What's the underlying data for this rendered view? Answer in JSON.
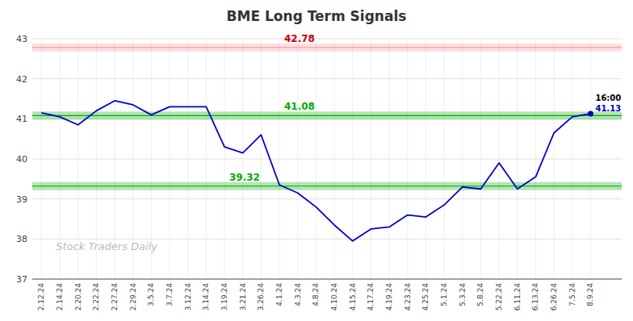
{
  "chart_data": {
    "type": "line",
    "title": "BME Long Term Signals",
    "categories": [
      "2.12.24",
      "2.14.24",
      "2.20.24",
      "2.22.24",
      "2.27.24",
      "2.29.24",
      "3.5.24",
      "3.7.24",
      "3.12.24",
      "3.14.24",
      "3.19.24",
      "3.21.24",
      "3.26.24",
      "4.1.24",
      "4.3.24",
      "4.8.24",
      "4.10.24",
      "4.15.24",
      "4.17.24",
      "4.19.24",
      "4.23.24",
      "4.25.24",
      "5.1.24",
      "5.3.24",
      "5.8.24",
      "5.22.24",
      "6.11.24",
      "6.13.24",
      "6.26.24",
      "7.5.24",
      "8.9.24"
    ],
    "values": [
      41.15,
      41.05,
      40.85,
      41.2,
      41.45,
      41.35,
      41.1,
      41.3,
      41.3,
      41.3,
      40.3,
      40.15,
      40.6,
      39.35,
      39.15,
      38.8,
      38.35,
      37.95,
      38.25,
      38.3,
      38.6,
      38.55,
      38.85,
      39.3,
      39.25,
      39.9,
      39.25,
      39.55,
      40.65,
      41.05,
      41.13
    ],
    "color": "#0000cc",
    "ylim": [
      37,
      43
    ],
    "yticks": [
      37,
      38,
      39,
      40,
      41,
      42,
      43
    ],
    "grid": true,
    "reference_lines": [
      {
        "value": 42.78,
        "color": "#ff9999",
        "label_color": "#cc0000"
      },
      {
        "value": 41.08,
        "color": "#00aa00",
        "label_color": "#00aa00"
      },
      {
        "value": 39.32,
        "color": "#00aa00",
        "label_color": "#00aa00"
      }
    ],
    "annotations": [
      {
        "text": "16:00"
      },
      {
        "text": "41.13"
      }
    ],
    "watermark": "Stock Traders Daily"
  }
}
